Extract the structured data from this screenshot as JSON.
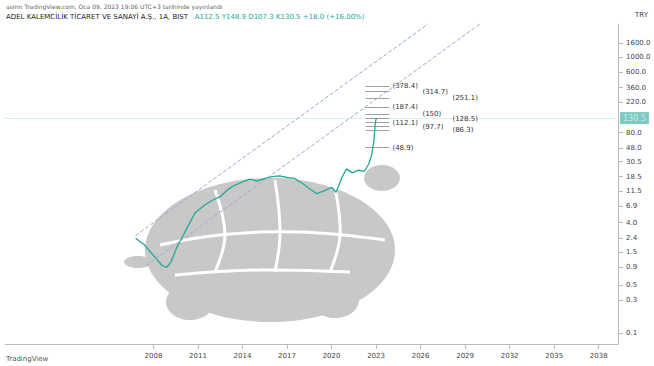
{
  "chart_data": {
    "type": "line",
    "title": "ADEL KALEMCİLİK TİCARET VE SANAYİ A.Ş., 1A, BIST",
    "subtitle": "A112.5 Y148.9 D107.3 K130.5 +18.0 (+16.00%)",
    "publisher": "asmn TradingView.com, Oca 09, 2023 19:06 UTC+3 tarihinde yayınlandı",
    "currency": "TRY",
    "watermark": "TradingView",
    "log": "y",
    "grid": false,
    "xlim": [
      1998,
      2039.3
    ],
    "xticks": [
      2008,
      2011,
      2014,
      2017,
      2020,
      2023,
      2026,
      2029,
      2032,
      2035,
      2038
    ],
    "ylim": [
      0.07,
      3000
    ],
    "yticks": [
      {
        "value": 0.1,
        "label": "0.1"
      },
      {
        "value": 0.3,
        "label": "0.3"
      },
      {
        "value": 0.5,
        "label": "0.5"
      },
      {
        "value": 0.9,
        "label": "0.9"
      },
      {
        "value": 1.5,
        "label": "1.5"
      },
      {
        "value": 2.4,
        "label": "2.4"
      },
      {
        "value": 4,
        "label": "4.0"
      },
      {
        "value": 6.9,
        "label": "6.9"
      },
      {
        "value": 11.5,
        "label": "11.5"
      },
      {
        "value": 18.5,
        "label": "18.5"
      },
      {
        "value": 30.5,
        "label": "30.5"
      },
      {
        "value": 48,
        "label": "48.0"
      },
      {
        "value": 80,
        "label": "80.0"
      },
      {
        "value": 220,
        "label": "220.0"
      },
      {
        "value": 360,
        "label": "360.0"
      },
      {
        "value": 600,
        "label": "600.0"
      },
      {
        "value": 1000,
        "label": "1000.0"
      },
      {
        "value": 1600,
        "label": "1600.0"
      }
    ],
    "series": [
      {
        "color": "#26a69a",
        "line_style": "solid",
        "marker": "none",
        "x": [
          2006.8,
          2007.0,
          2007.4,
          2007.8,
          2008.2,
          2008.6,
          2008.9,
          2009.2,
          2009.6,
          2010.0,
          2010.4,
          2010.8,
          2011.2,
          2011.6,
          2012.0,
          2012.5,
          2013.0,
          2013.5,
          2014.0,
          2014.5,
          2015.0,
          2015.5,
          2016.0,
          2016.5,
          2017.0,
          2017.5,
          2018.0,
          2018.5,
          2019.0,
          2019.5,
          2020.0,
          2020.3,
          2020.7,
          2021.0,
          2021.4,
          2021.8,
          2022.2,
          2022.5,
          2022.7,
          2022.85,
          2022.95,
          2023.02
        ],
        "values": [
          2.4,
          2.2,
          1.9,
          1.5,
          1.2,
          0.95,
          0.9,
          1.1,
          1.8,
          2.6,
          3.8,
          5.5,
          6.5,
          7.5,
          8.5,
          9.5,
          12,
          14,
          15.5,
          17,
          16,
          17.5,
          18.5,
          19,
          18,
          17.5,
          15,
          12.5,
          10.5,
          11.5,
          13,
          11,
          18,
          24,
          21,
          23,
          22,
          28,
          38,
          60,
          112.5,
          130.5
        ]
      },
      {
        "color": "#9aabcf",
        "line_style": "dashed",
        "marker": "none",
        "x": [
          2006.8,
          2026.5
        ],
        "values": [
          2.6,
          3000
        ]
      },
      {
        "color": "#9aabcf",
        "line_style": "dashed",
        "marker": "none",
        "x": [
          2007.5,
          2030.0
        ],
        "values": [
          0.95,
          3000
        ]
      }
    ],
    "last_price": {
      "value": 130.5,
      "label": "130.5",
      "color": "#26a69a"
    },
    "level_x": [
      2022.3,
      2023.9
    ],
    "levels": [
      {
        "value": 378.4,
        "label": "(378.4)"
      },
      {
        "value": 314.7,
        "label": "(314.7)"
      },
      {
        "value": 251.1,
        "label": "(251.1)"
      },
      {
        "value": 187.4,
        "label": "(187.4)"
      },
      {
        "value": 150,
        "label": "(150)"
      },
      {
        "value": 128.5,
        "label": "(128.5)"
      },
      {
        "value": 112.1,
        "label": "(112.1)"
      },
      {
        "value": 97.7,
        "label": "(97.7)"
      },
      {
        "value": 86.3,
        "label": "(86.3)"
      },
      {
        "value": 48.9,
        "label": "(48.9)"
      }
    ]
  }
}
